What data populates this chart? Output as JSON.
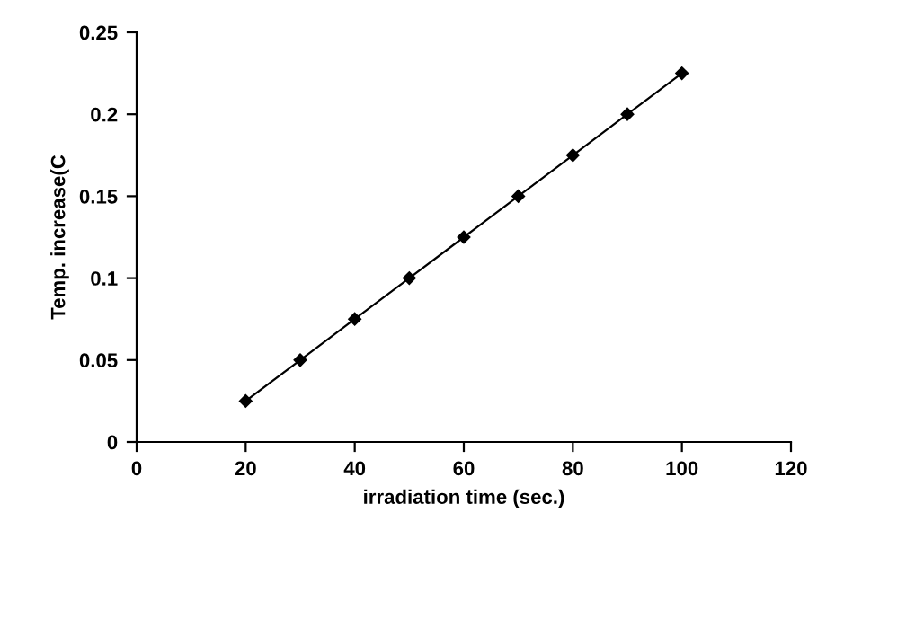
{
  "chart_data": {
    "type": "line",
    "xlabel": "irradiation time (sec.)",
    "ylabel": "Temp. increase(C",
    "x": [
      20,
      30,
      40,
      50,
      60,
      70,
      80,
      90,
      100
    ],
    "series": [
      {
        "color": "#000000",
        "values": [
          0.025,
          0.05,
          0.075,
          0.1,
          0.125,
          0.15,
          0.175,
          0.2,
          0.225
        ]
      }
    ],
    "xlim": [
      0,
      120
    ],
    "xticks": [
      0,
      20,
      40,
      60,
      80,
      100,
      120
    ],
    "ylim": [
      0,
      0.25
    ],
    "yticks": [
      0,
      0.05,
      0.1,
      0.15,
      0.2,
      0.25
    ],
    "grid": false,
    "legend": false,
    "marker": "diamond",
    "line_style": "solid"
  }
}
